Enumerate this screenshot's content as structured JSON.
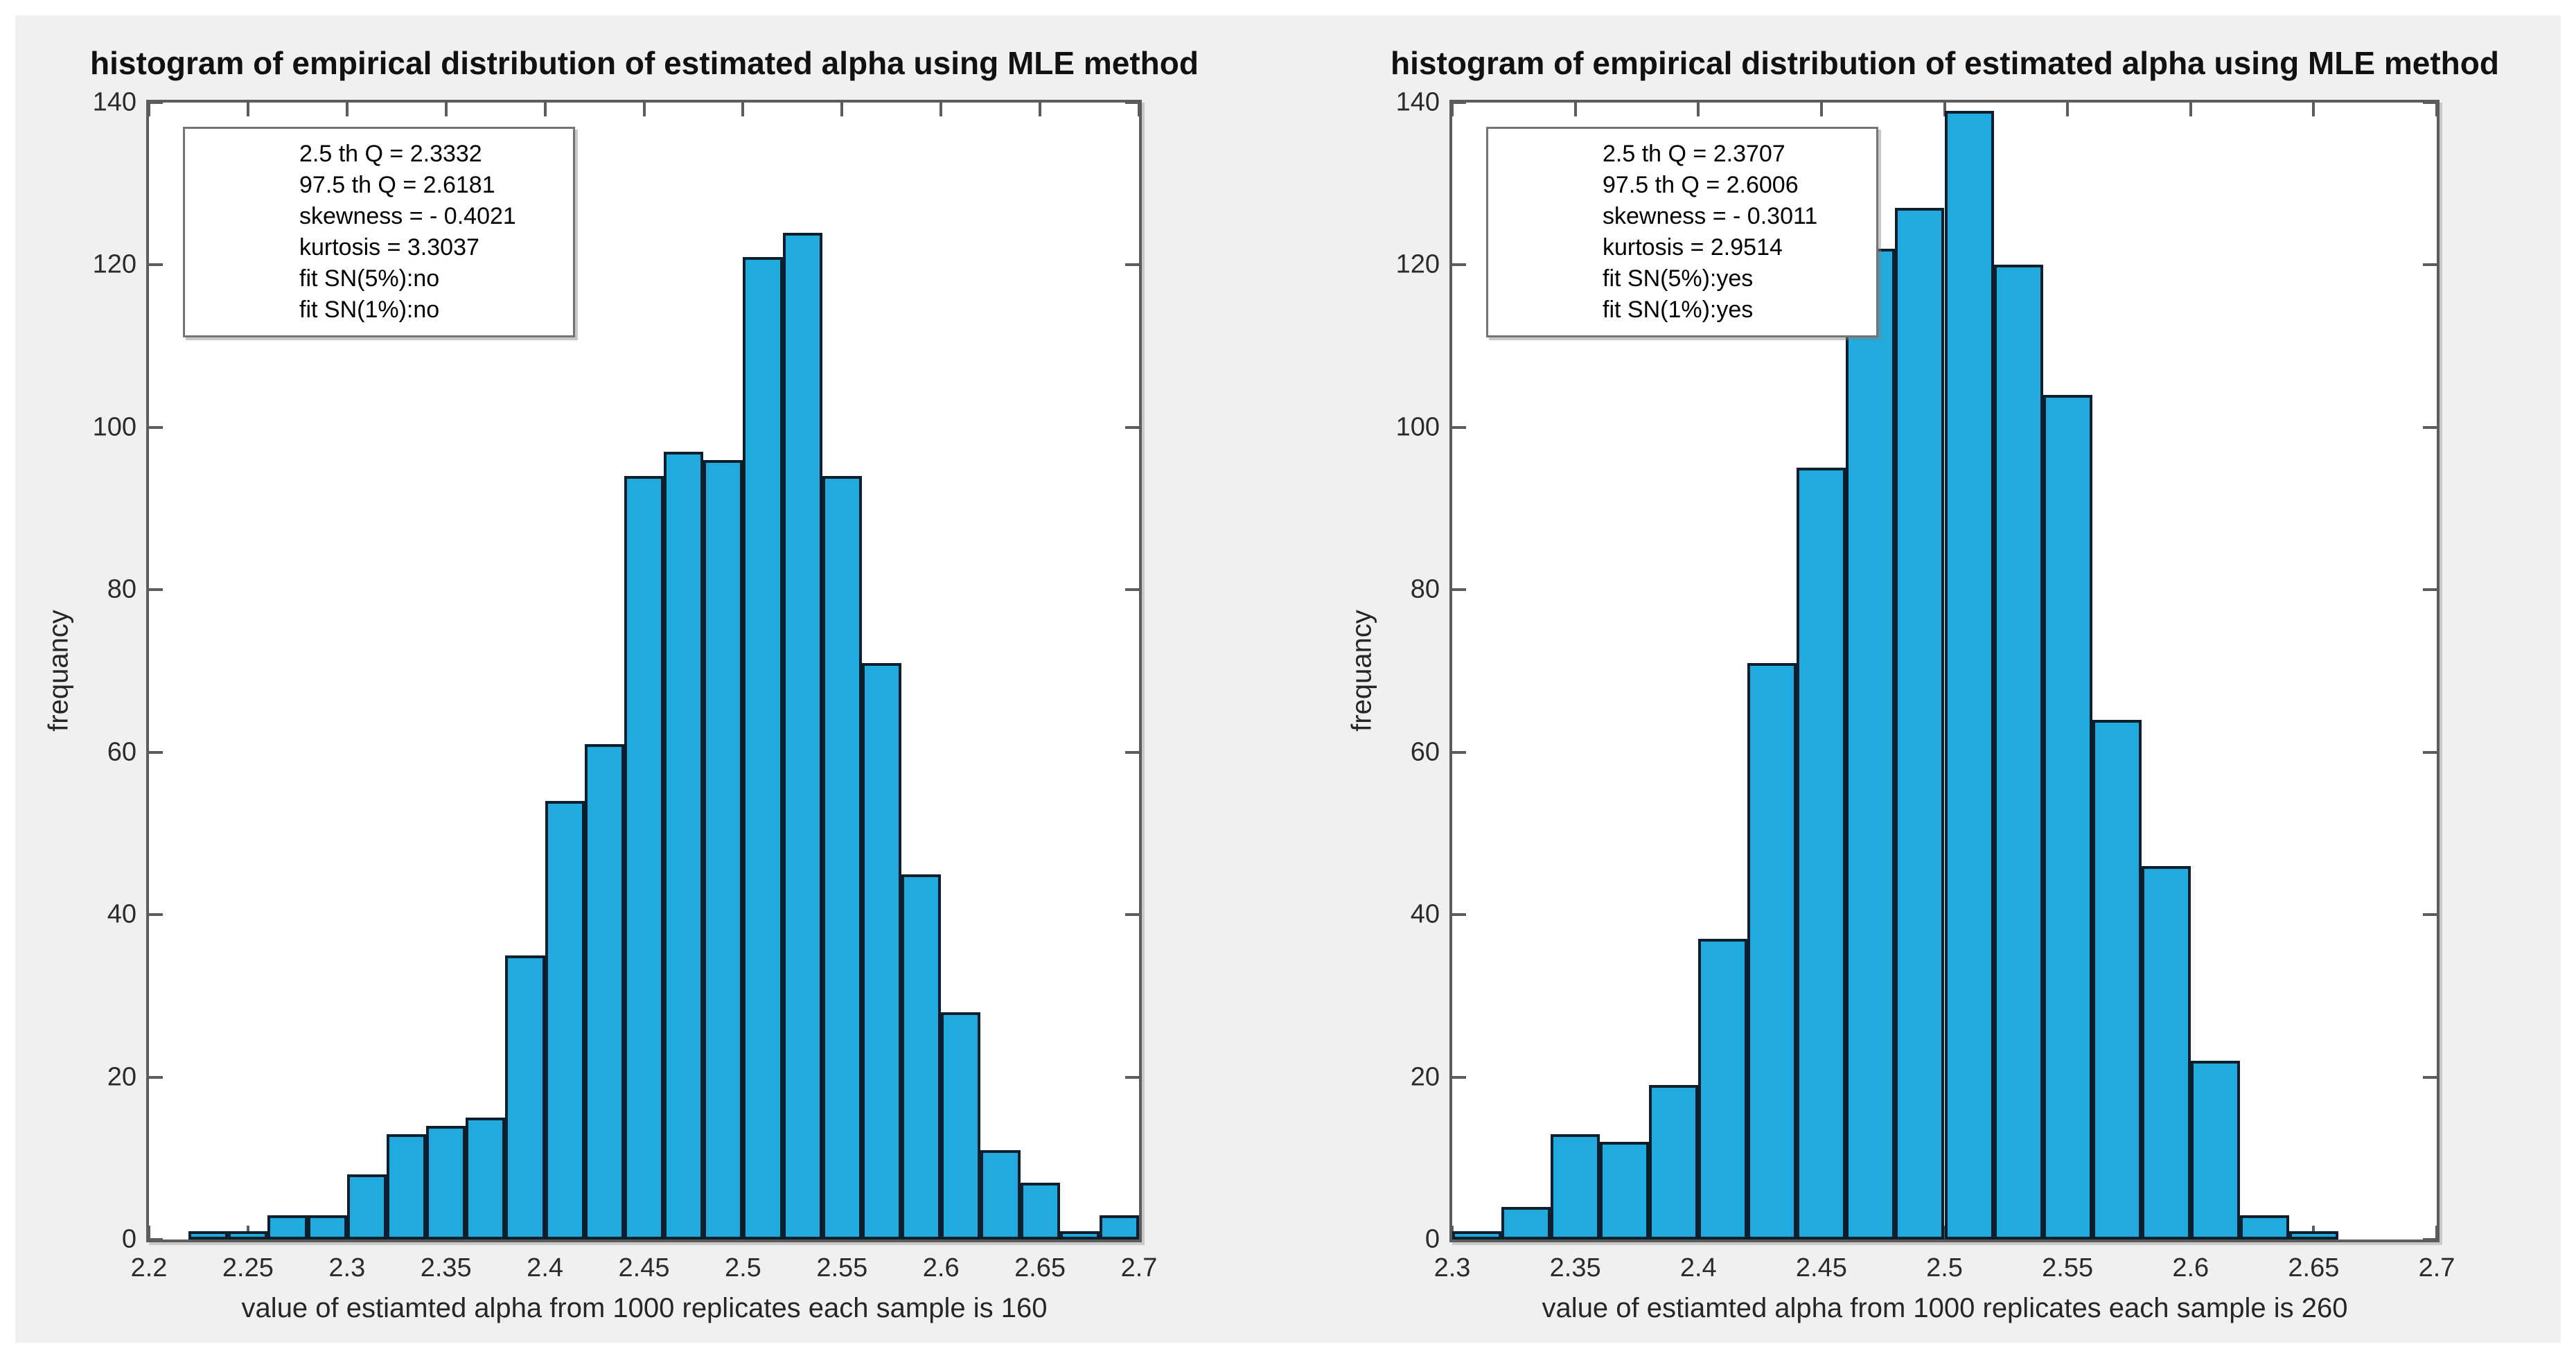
{
  "figure": {
    "page_background": "#ffffff",
    "background": "#f0f0f0"
  },
  "styles": {
    "bar_fill": "#21aadd",
    "bar_edge": "#0d1f2d",
    "axis_color": "#5c5c5c",
    "text_color": "#262626"
  },
  "chart_data": [
    {
      "type": "bar",
      "title": "histogram of empirical distribution of estimated alpha using MLE method",
      "xlabel": "value of estiamted alpha from 1000 replicates each sample is 160",
      "ylabel": "frequancy",
      "xlim": [
        2.2,
        2.7
      ],
      "ylim": [
        0,
        140
      ],
      "grid": false,
      "legend_position": "none",
      "bin_start": 2.22,
      "bin_width": 0.02,
      "values": [
        1,
        1,
        3,
        3,
        8,
        13,
        14,
        15,
        35,
        54,
        61,
        94,
        97,
        96,
        121,
        124,
        94,
        71,
        45,
        28,
        11,
        7,
        1,
        3
      ],
      "xticks": [
        "2.2",
        "2.25",
        "2.3",
        "2.35",
        "2.4",
        "2.45",
        "2.5",
        "2.55",
        "2.6",
        "2.65",
        "2.7"
      ],
      "yticks": [
        0,
        20,
        40,
        60,
        80,
        100,
        120,
        140
      ],
      "annotation": [
        "2.5 th Q = 2.3332",
        "97.5 th Q = 2.6181",
        "skewness = - 0.4021",
        "kurtosis = 3.3037",
        "fit SN(5%):no",
        "fit SN(1%):no"
      ]
    },
    {
      "type": "bar",
      "title": "histogram of empirical distribution of estimated alpha using MLE method",
      "xlabel": "value of estiamted alpha from 1000 replicates each sample is 260",
      "ylabel": "frequancy",
      "xlim": [
        2.3,
        2.7
      ],
      "ylim": [
        0,
        140
      ],
      "grid": false,
      "legend_position": "none",
      "bin_start": 2.3,
      "bin_width": 0.02,
      "values": [
        1,
        4,
        13,
        12,
        19,
        37,
        71,
        95,
        122,
        127,
        139,
        120,
        104,
        64,
        46,
        22,
        3,
        1
      ],
      "xticks": [
        "2.3",
        "2.35",
        "2.4",
        "2.45",
        "2.5",
        "2.55",
        "2.6",
        "2.65",
        "2.7"
      ],
      "yticks": [
        0,
        20,
        40,
        60,
        80,
        100,
        120,
        140
      ],
      "annotation": [
        "2.5 th Q = 2.3707",
        "97.5 th Q = 2.6006",
        "skewness = - 0.3011",
        "kurtosis = 2.9514",
        "fit SN(5%):yes",
        "fit SN(1%):yes"
      ]
    }
  ]
}
